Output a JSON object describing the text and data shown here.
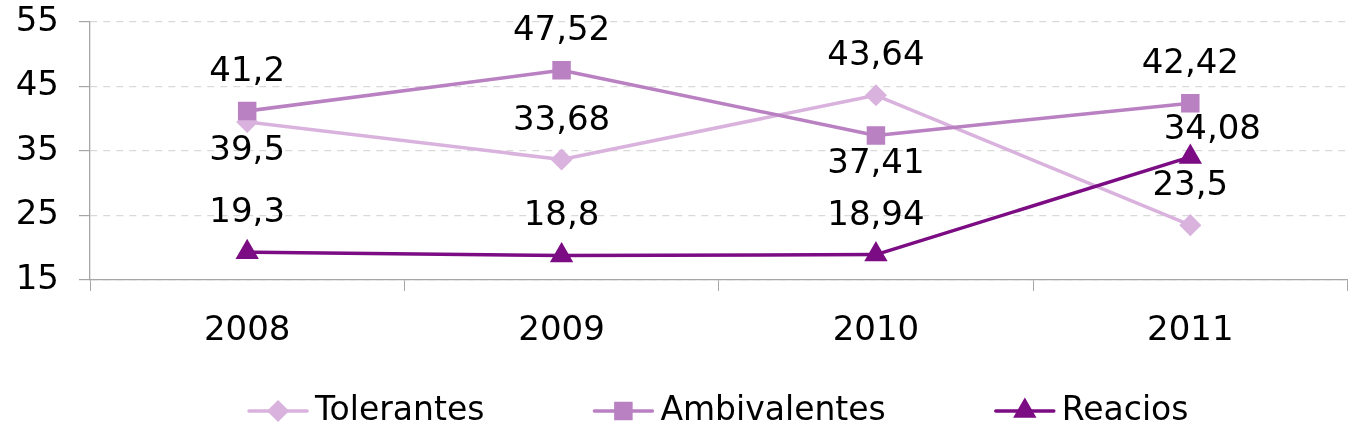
{
  "chart_data": {
    "type": "line",
    "categories": [
      "2008",
      "2009",
      "2010",
      "2011"
    ],
    "ylim": [
      15,
      55
    ],
    "yticks": [
      15,
      25,
      35,
      45,
      55
    ],
    "grid": "y",
    "legend": "bottom",
    "series": [
      {
        "name": "Tolerantes",
        "color": "#d9b3dd",
        "marker": "diamond",
        "values": [
          39.5,
          33.68,
          43.64,
          23.5
        ],
        "value_labels": [
          "39,5",
          "33,68",
          "43,64",
          "23,5"
        ]
      },
      {
        "name": "Ambivalentes",
        "color": "#b980c2",
        "marker": "square",
        "values": [
          41.2,
          47.52,
          37.41,
          42.42
        ],
        "value_labels": [
          "41,2",
          "47,52",
          "37,41",
          "42,42"
        ]
      },
      {
        "name": "Reacios",
        "color": "#7b0c83",
        "marker": "triangle",
        "values": [
          19.3,
          18.8,
          18.94,
          34.08
        ],
        "value_labels": [
          "19,3",
          "18,8",
          "18,94",
          "34,08"
        ]
      }
    ]
  }
}
